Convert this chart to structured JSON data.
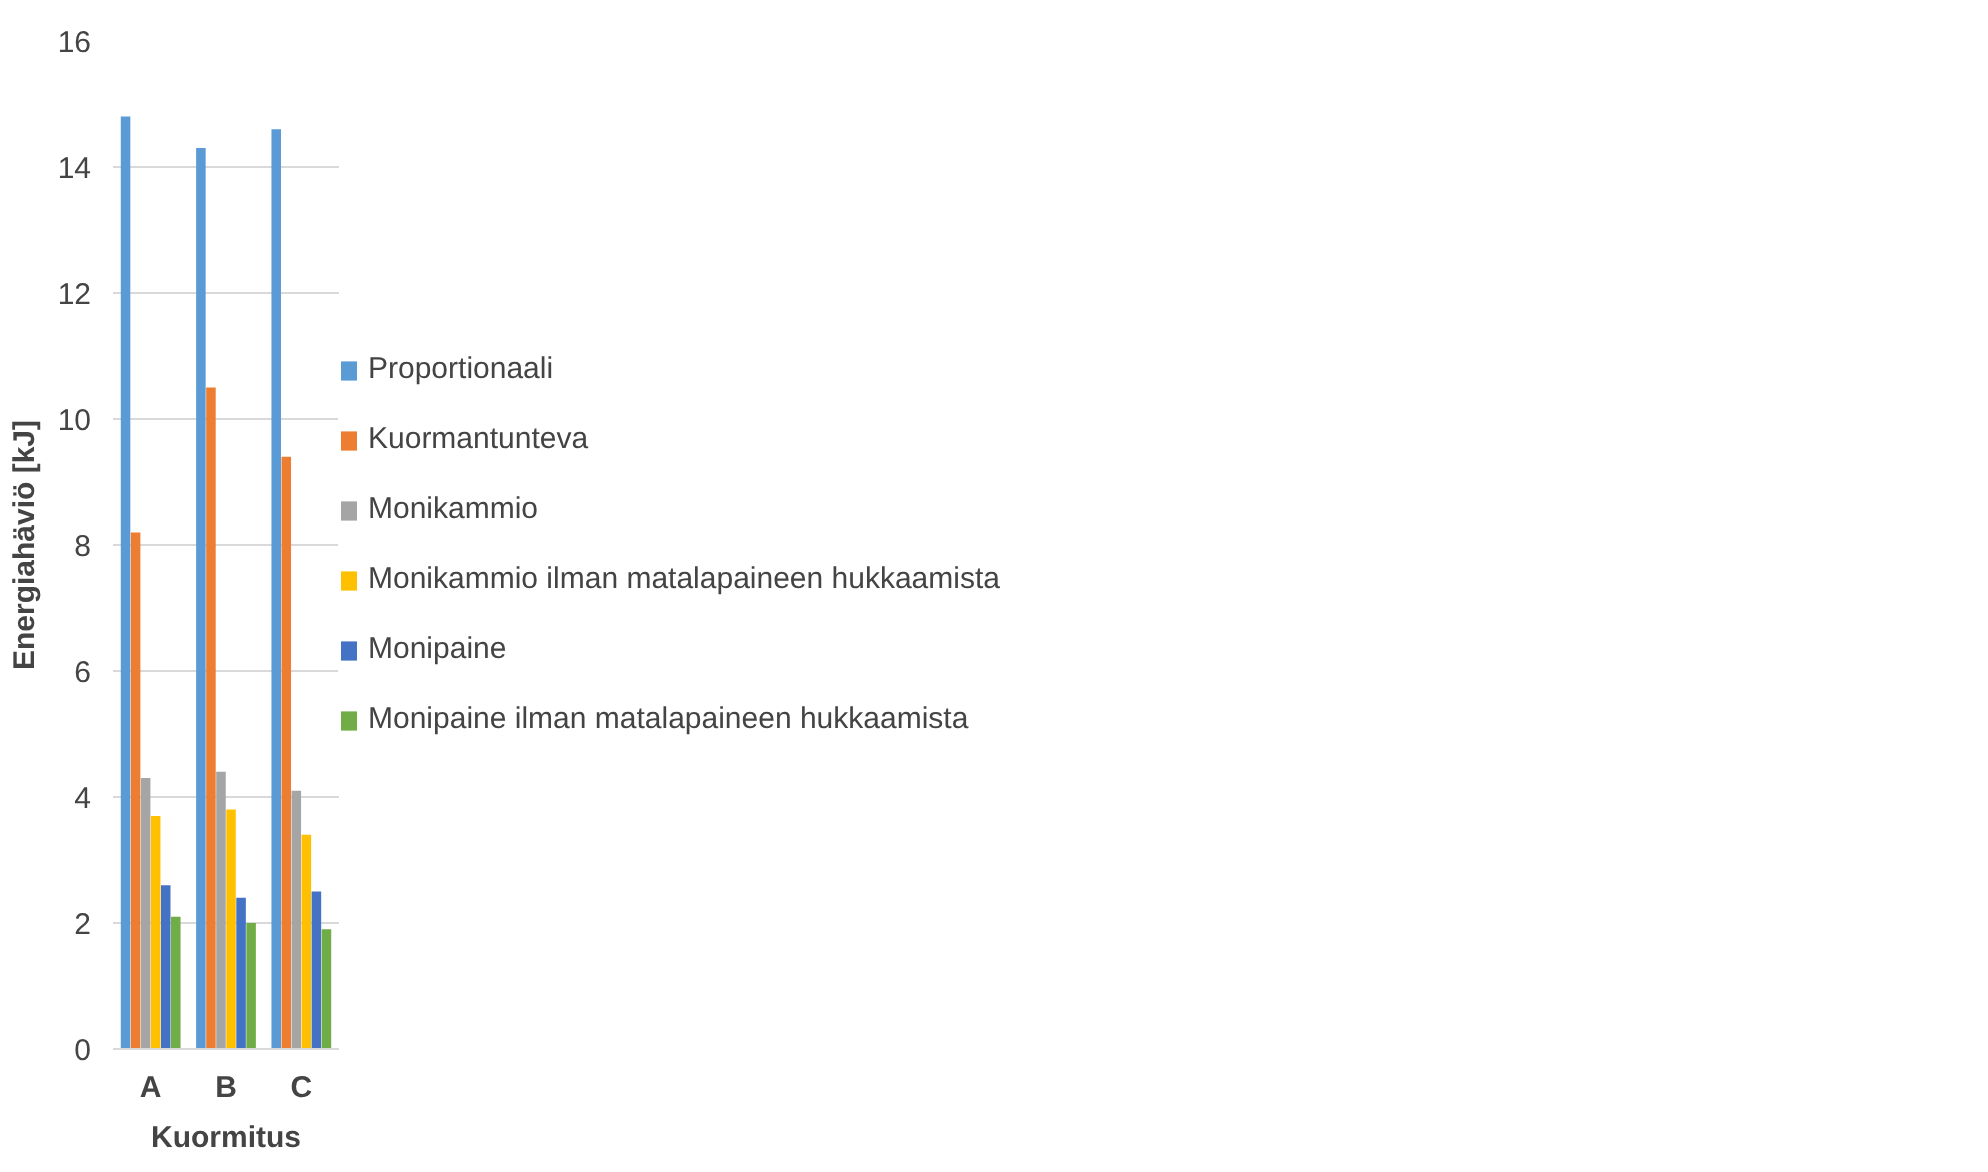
{
  "chart_data": {
    "type": "bar",
    "xlabel": "Kuormitus",
    "ylabel": "Energiahäviö [kJ]",
    "categories": [
      "A",
      "B",
      "C"
    ],
    "series": [
      {
        "name": "Proportionaali",
        "color": "#5b9bd5",
        "values": [
          14.8,
          14.3,
          14.6
        ]
      },
      {
        "name": "Kuormantunteva",
        "color": "#ed7d31",
        "values": [
          8.2,
          10.5,
          9.4
        ]
      },
      {
        "name": "Monikammio",
        "color": "#a5a5a5",
        "values": [
          4.3,
          4.4,
          4.1
        ]
      },
      {
        "name": "Monikammio ilman matalapaineen hukkaamista",
        "color": "#ffc000",
        "values": [
          3.7,
          3.8,
          3.4
        ]
      },
      {
        "name": "Monipaine",
        "color": "#4472c4",
        "values": [
          2.6,
          2.4,
          2.5
        ]
      },
      {
        "name": "Monipaine ilman matalapaineen hukkaamista",
        "color": "#70ad47",
        "values": [
          2.1,
          2.0,
          1.9
        ]
      }
    ],
    "ylim": [
      0,
      16
    ],
    "yticks": [
      0,
      2,
      4,
      6,
      8,
      10,
      12,
      14,
      16
    ],
    "grid": "y",
    "legend": "right"
  }
}
